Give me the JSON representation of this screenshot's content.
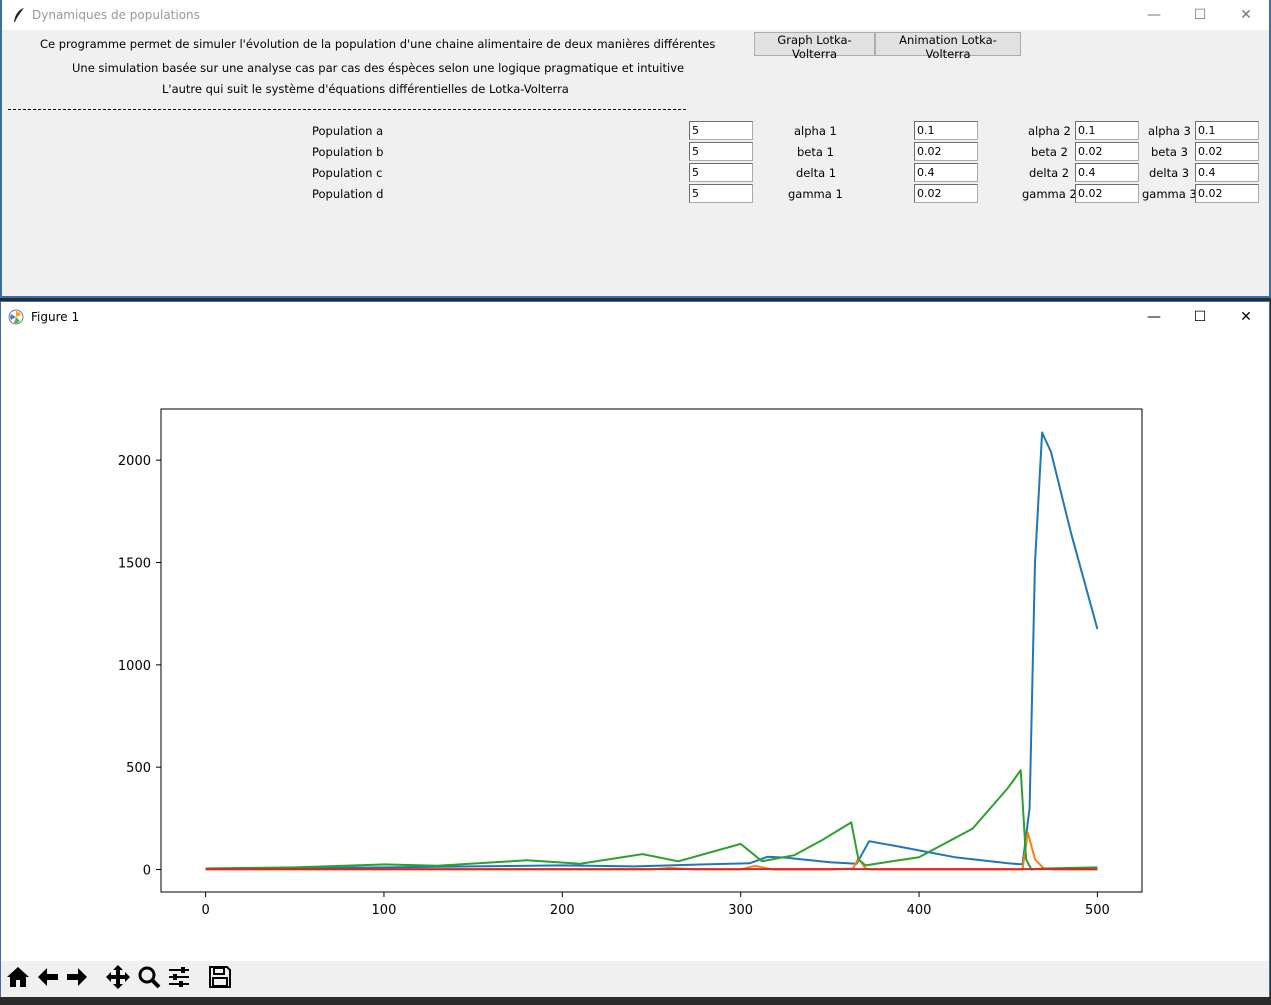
{
  "tk_window": {
    "title": "Dynamiques de populations",
    "desc_lines": [
      "Ce programme permet de simuler l'évolution de la population d'une chaine alimentaire de deux manières différentes",
      "Une simulation basée sur une analyse cas par cas des éspèces selon une logique pragmatique et intuitive",
      "L'autre qui suit le système d'équations différentielles de Lotka-Volterra"
    ],
    "buttons": {
      "graph": "Graph Lotka-Volterra",
      "animation": "Animation Lotka-Volterra"
    },
    "populations": [
      {
        "label": "Population a",
        "value": "5"
      },
      {
        "label": "Population b",
        "value": "5"
      },
      {
        "label": "Population c",
        "value": "5"
      },
      {
        "label": "Population d",
        "value": "5"
      }
    ],
    "params1": [
      {
        "label": "alpha 1",
        "value": "0.1"
      },
      {
        "label": "beta 1",
        "value": "0.02"
      },
      {
        "label": "delta 1",
        "value": "0.4"
      },
      {
        "label": "gamma 1",
        "value": "0.02"
      }
    ],
    "params2": [
      {
        "label": "alpha 2",
        "value": "0.1"
      },
      {
        "label": "beta 2",
        "value": "0.02"
      },
      {
        "label": "delta 2",
        "value": "0.4"
      },
      {
        "label": "gamma 2",
        "value": "0.02"
      }
    ],
    "params3": [
      {
        "label": "alpha 3",
        "value": "0.1"
      },
      {
        "label": "beta 3",
        "value": "0.02"
      },
      {
        "label": "delta 3",
        "value": "0.4"
      },
      {
        "label": "gamma 3",
        "value": "0.02"
      }
    ]
  },
  "figure_window": {
    "title": "Figure 1"
  },
  "titlebar_glyphs": {
    "minimize": "—",
    "maximize": "☐",
    "close": "✕"
  },
  "toolbar": [
    "home-icon",
    "back-icon",
    "forward-icon",
    "pan-icon",
    "zoom-icon",
    "configure-icon",
    "save-icon"
  ],
  "chart_data": {
    "type": "line",
    "xlim": [
      -25,
      525
    ],
    "ylim": [
      -110,
      2250
    ],
    "xticks": [
      0,
      100,
      200,
      300,
      400,
      500
    ],
    "yticks": [
      0,
      500,
      1000,
      1500,
      2000
    ],
    "grid": false,
    "series": [
      {
        "color": "#1f77b4",
        "points": [
          [
            0,
            5
          ],
          [
            100,
            10
          ],
          [
            150,
            15
          ],
          [
            200,
            20
          ],
          [
            240,
            15
          ],
          [
            280,
            25
          ],
          [
            305,
            30
          ],
          [
            315,
            62
          ],
          [
            325,
            58
          ],
          [
            350,
            35
          ],
          [
            365,
            28
          ],
          [
            372,
            138
          ],
          [
            390,
            110
          ],
          [
            420,
            60
          ],
          [
            450,
            30
          ],
          [
            458,
            25
          ],
          [
            462,
            300
          ],
          [
            465,
            1500
          ],
          [
            469,
            2135
          ],
          [
            474,
            2040
          ],
          [
            485,
            1650
          ],
          [
            500,
            1175
          ]
        ]
      },
      {
        "color": "#ff7f0e",
        "points": [
          [
            0,
            0
          ],
          [
            250,
            0
          ],
          [
            260,
            8
          ],
          [
            275,
            0
          ],
          [
            300,
            0
          ],
          [
            308,
            18
          ],
          [
            318,
            0
          ],
          [
            350,
            0
          ],
          [
            363,
            5
          ],
          [
            366,
            55
          ],
          [
            370,
            5
          ],
          [
            373,
            0
          ],
          [
            450,
            0
          ],
          [
            458,
            0
          ],
          [
            461,
            180
          ],
          [
            465,
            50
          ],
          [
            470,
            5
          ],
          [
            475,
            0
          ],
          [
            500,
            0
          ]
        ]
      },
      {
        "color": "#2ca02c",
        "points": [
          [
            0,
            5
          ],
          [
            50,
            10
          ],
          [
            100,
            25
          ],
          [
            130,
            18
          ],
          [
            180,
            45
          ],
          [
            210,
            28
          ],
          [
            245,
            75
          ],
          [
            265,
            40
          ],
          [
            300,
            125
          ],
          [
            312,
            40
          ],
          [
            330,
            70
          ],
          [
            345,
            140
          ],
          [
            362,
            230
          ],
          [
            366,
            50
          ],
          [
            370,
            20
          ],
          [
            400,
            60
          ],
          [
            430,
            200
          ],
          [
            450,
            400
          ],
          [
            457,
            485
          ],
          [
            460,
            50
          ],
          [
            463,
            0
          ],
          [
            470,
            5
          ],
          [
            500,
            10
          ]
        ]
      },
      {
        "color": "#d62728",
        "points": [
          [
            0,
            2
          ],
          [
            500,
            2
          ]
        ]
      }
    ]
  }
}
